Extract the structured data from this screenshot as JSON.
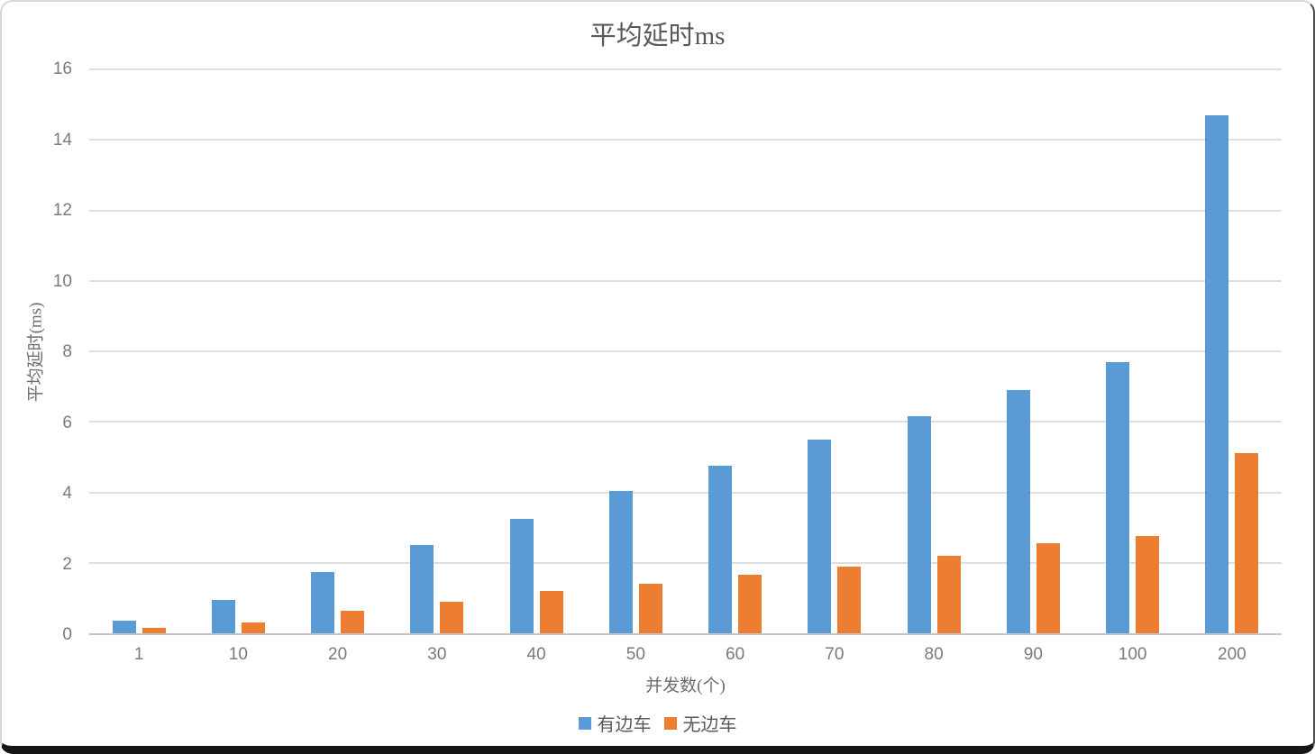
{
  "title": "平均延时ms",
  "chart_data": {
    "type": "bar",
    "title": "平均延时ms",
    "xlabel": "并发数(个)",
    "ylabel": "平均延时(ms)",
    "categories": [
      "1",
      "10",
      "20",
      "30",
      "40",
      "50",
      "60",
      "70",
      "80",
      "90",
      "100",
      "200"
    ],
    "series": [
      {
        "name": "有边车",
        "color": "#5B9BD5",
        "values": [
          0.35,
          0.95,
          1.75,
          2.5,
          3.25,
          4.05,
          4.75,
          5.5,
          6.15,
          6.9,
          7.7,
          14.7
        ]
      },
      {
        "name": "无边车",
        "color": "#ED7D31",
        "values": [
          0.15,
          0.3,
          0.65,
          0.9,
          1.2,
          1.4,
          1.65,
          1.9,
          2.2,
          2.55,
          2.75,
          5.1
        ]
      }
    ],
    "ylim": [
      0,
      16
    ],
    "yticks": [
      0,
      2,
      4,
      6,
      8,
      10,
      12,
      14,
      16
    ],
    "grid": true,
    "legend_position": "bottom"
  },
  "colors": {
    "gridline": "#dedede",
    "axis_line": "#c7c7c7",
    "tick_label": "#7a7a7a",
    "title_text": "#595959"
  }
}
